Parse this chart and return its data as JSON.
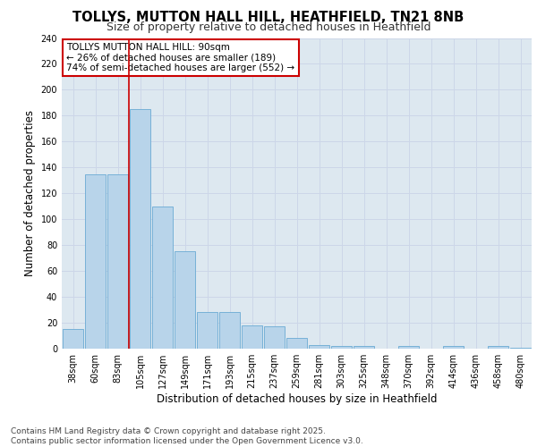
{
  "title1": "TOLLYS, MUTTON HALL HILL, HEATHFIELD, TN21 8NB",
  "title2": "Size of property relative to detached houses in Heathfield",
  "xlabel": "Distribution of detached houses by size in Heathfield",
  "ylabel": "Number of detached properties",
  "categories": [
    "38sqm",
    "60sqm",
    "83sqm",
    "105sqm",
    "127sqm",
    "149sqm",
    "171sqm",
    "193sqm",
    "215sqm",
    "237sqm",
    "259sqm",
    "281sqm",
    "303sqm",
    "325sqm",
    "348sqm",
    "370sqm",
    "392sqm",
    "414sqm",
    "436sqm",
    "458sqm",
    "480sqm"
  ],
  "values": [
    15,
    135,
    135,
    185,
    110,
    75,
    28,
    28,
    18,
    17,
    8,
    3,
    2,
    2,
    0,
    2,
    0,
    2,
    0,
    2,
    1
  ],
  "bar_color": "#b8d4ea",
  "bar_edge_color": "#6aaad4",
  "bar_width": 0.9,
  "vline_color": "#cc0000",
  "vline_pos": 2.5,
  "annotation_text": "TOLLYS MUTTON HALL HILL: 90sqm\n← 26% of detached houses are smaller (189)\n74% of semi-detached houses are larger (552) →",
  "annotation_box_color": "#ffffff",
  "annotation_box_edge": "#cc0000",
  "ylim": [
    0,
    240
  ],
  "yticks": [
    0,
    20,
    40,
    60,
    80,
    100,
    120,
    140,
    160,
    180,
    200,
    220,
    240
  ],
  "grid_color": "#ccd6e8",
  "background_color": "#dde8f0",
  "footnote": "Contains HM Land Registry data © Crown copyright and database right 2025.\nContains public sector information licensed under the Open Government Licence v3.0.",
  "title1_fontsize": 10.5,
  "title2_fontsize": 9,
  "xlabel_fontsize": 8.5,
  "ylabel_fontsize": 8.5,
  "tick_fontsize": 7,
  "annotation_fontsize": 7.5,
  "footnote_fontsize": 6.5
}
